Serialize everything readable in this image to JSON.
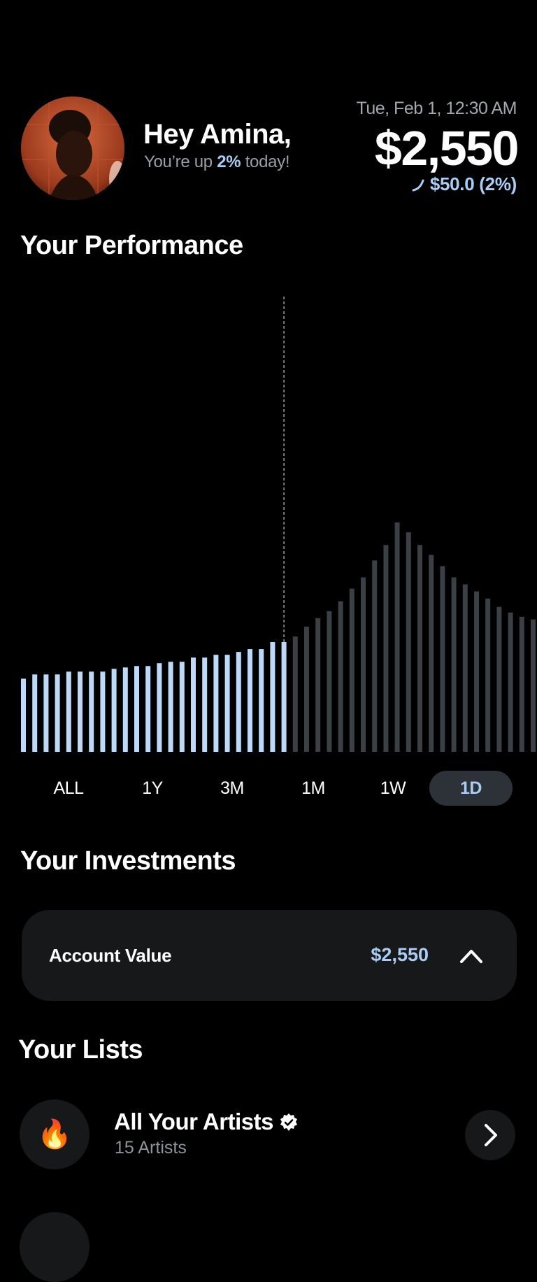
{
  "header": {
    "greeting": "Hey Amina,",
    "sub_prefix": "You’re up",
    "sub_highlight": "2%",
    "sub_suffix": "today!",
    "date": "Tue, Feb 1, 12:30 AM",
    "balance": "$2,550",
    "change": "$50.0 (2%)"
  },
  "performance": {
    "title": "Your Performance",
    "ranges": [
      "ALL",
      "1Y",
      "3M",
      "1M",
      "1W",
      "1D"
    ],
    "active_range": "1D"
  },
  "chart_data": {
    "type": "bar",
    "values": [
      52,
      55,
      55,
      55,
      57,
      57,
      57,
      57,
      59,
      60,
      61,
      61,
      63,
      64,
      64,
      67,
      67,
      69,
      69,
      71,
      73,
      73,
      78,
      78,
      82,
      89,
      95,
      100,
      107,
      116,
      124,
      136,
      147,
      163,
      156,
      147,
      140,
      132,
      124,
      119,
      114,
      109,
      103,
      99,
      96,
      94,
      94,
      94,
      94
    ],
    "highlight_count": 24,
    "colors": {
      "past": "#bcd9f7",
      "future": "#3a4046"
    },
    "cursor_index": 23
  },
  "investments": {
    "title": "Your Investments",
    "card_label": "Account Value",
    "card_value": "$2,550"
  },
  "lists": {
    "title": "Your Lists",
    "items": [
      {
        "icon": "🔥",
        "title": "All Your Artists",
        "subtitle": "15 Artists"
      }
    ]
  },
  "colors": {
    "accent": "#a9cdf5",
    "card": "#161819",
    "active_pill": "#2c3238"
  }
}
